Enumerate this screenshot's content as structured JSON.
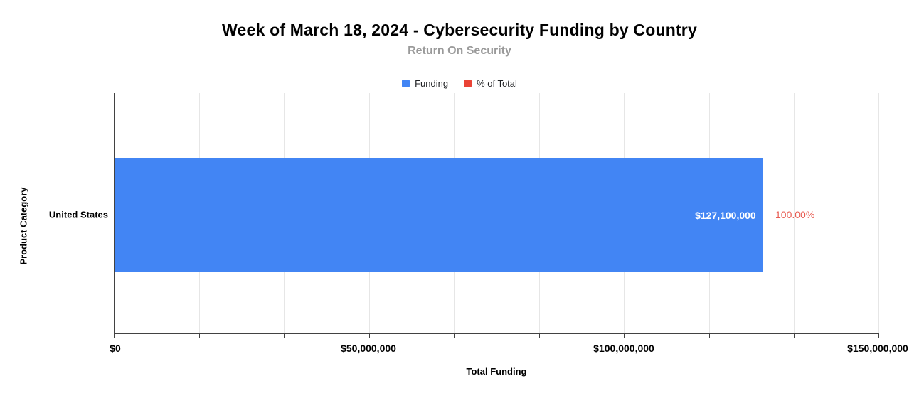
{
  "header": {
    "title": "Week of March 18, 2024 - Cybersecurity Funding by Country",
    "subtitle": "Return On Security"
  },
  "legend": {
    "items": [
      {
        "label": "Funding",
        "color": "#4285f4"
      },
      {
        "label": "% of Total",
        "color": "#ea4335"
      }
    ]
  },
  "chart_data": {
    "type": "bar",
    "orientation": "horizontal",
    "title": "Week of March 18, 2024 - Cybersecurity Funding by Country",
    "subtitle": "Return On Security",
    "xlabel": "Total Funding",
    "ylabel": "Product Category",
    "categories": [
      "United States"
    ],
    "series": [
      {
        "name": "Funding",
        "values": [
          127100000
        ],
        "data_labels": [
          "$127,100,000"
        ],
        "color": "#4285f4",
        "label_color": "#ffffff"
      },
      {
        "name": "% of Total",
        "values": [
          100.0
        ],
        "data_labels": [
          "100.00%"
        ],
        "color": "#ea4335",
        "label_color": "#e85c52"
      }
    ],
    "xlim": [
      0,
      150000000
    ],
    "x_ticks": [
      0,
      50000000,
      100000000,
      150000000
    ],
    "x_tick_labels": [
      "$0",
      "$50,000,000",
      "$100,000,000",
      "$150,000,000"
    ],
    "grid": {
      "visible": true,
      "minor_divisions_per_major": 3,
      "gridline_color": "#e6e6e6",
      "axis_color": "#424242"
    },
    "legend_position": "top"
  },
  "colors": {
    "background": "#ffffff",
    "title": "#000000",
    "subtitle": "#9a9a9a",
    "bar_fill": "#4285f4",
    "pct_label": "#e85c52"
  }
}
